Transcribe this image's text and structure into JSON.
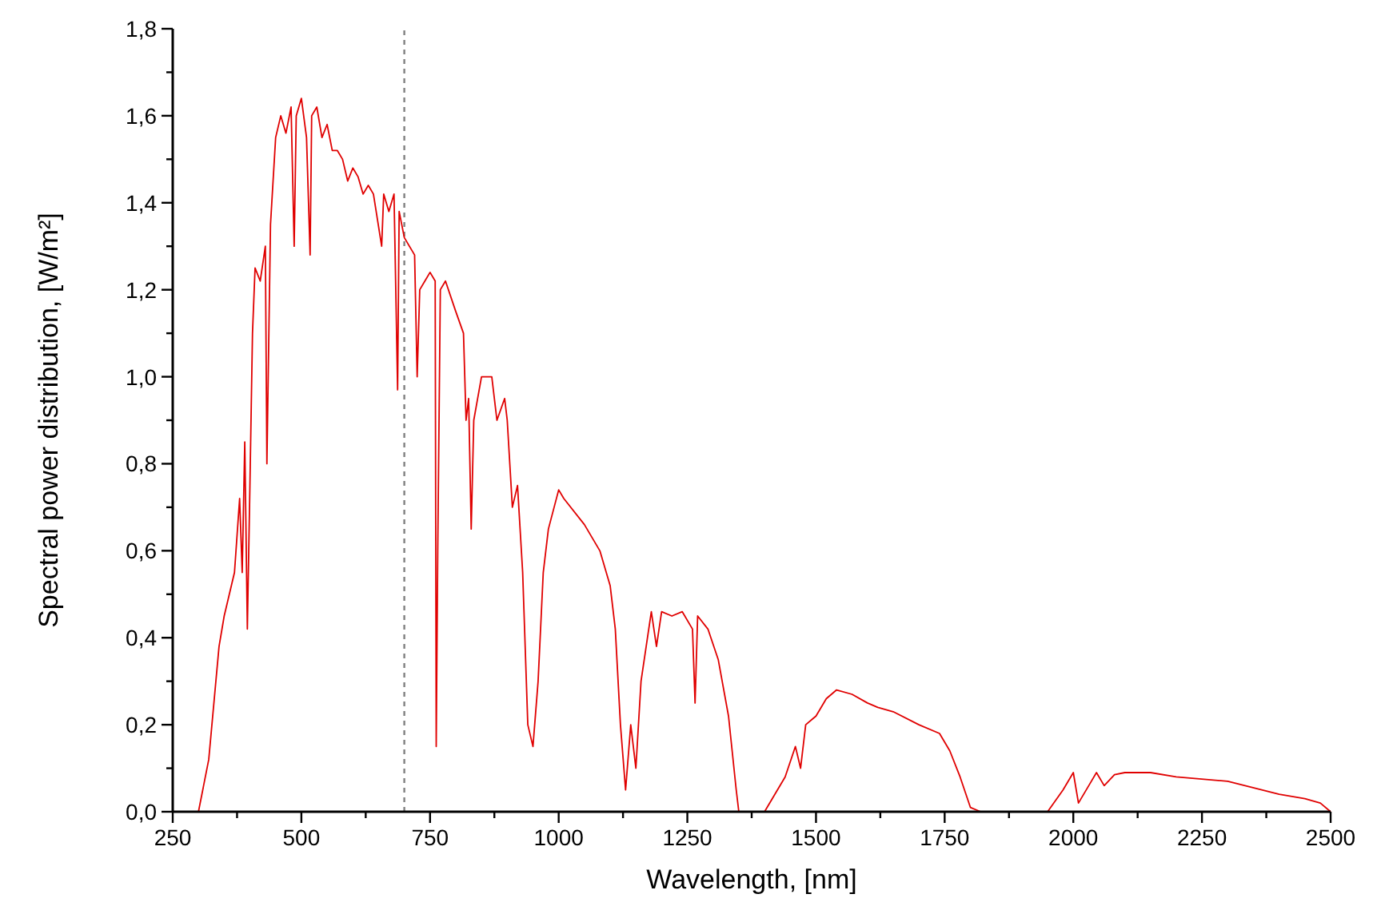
{
  "chart_data": {
    "type": "line",
    "xlabel": "Wavelength, [nm]",
    "ylabel": "Spectral power distribution, [W/m²]",
    "xlim": [
      250,
      2500
    ],
    "ylim": [
      0,
      1.8
    ],
    "xticks": [
      250,
      {
        "value": 375,
        "label": null
      },
      500,
      {
        "value": 625,
        "label": null
      },
      750,
      {
        "value": 875,
        "label": null
      },
      1000,
      {
        "value": 1125,
        "label": null
      },
      1250,
      {
        "value": 1375,
        "label": null
      },
      1500,
      {
        "value": 1625,
        "label": null
      },
      1750,
      {
        "value": 1875,
        "label": null
      },
      2000,
      {
        "value": 2125,
        "label": null
      },
      2250,
      {
        "value": 2375,
        "label": null
      },
      2500
    ],
    "yticks": [
      {
        "value": 0,
        "label": "0,0"
      },
      {
        "value": 0.1,
        "label": null
      },
      {
        "value": 0.2,
        "label": "0,2"
      },
      {
        "value": 0.3,
        "label": null
      },
      {
        "value": 0.4,
        "label": "0,4"
      },
      {
        "value": 0.5,
        "label": null
      },
      {
        "value": 0.6,
        "label": "0,6"
      },
      {
        "value": 0.7,
        "label": null
      },
      {
        "value": 0.8,
        "label": "0,8"
      },
      {
        "value": 0.9,
        "label": null
      },
      {
        "value": 1.0,
        "label": "1,0"
      },
      {
        "value": 1.1,
        "label": null
      },
      {
        "value": 1.2,
        "label": "1,2"
      },
      {
        "value": 1.3,
        "label": null
      },
      {
        "value": 1.4,
        "label": "1,4"
      },
      {
        "value": 1.5,
        "label": null
      },
      {
        "value": 1.6,
        "label": "1,6"
      },
      {
        "value": 1.7,
        "label": null
      },
      {
        "value": 1.8,
        "label": "1,8"
      }
    ],
    "grid": false,
    "line_style": "solid",
    "ref_lines": [
      {
        "axis": "x",
        "value": 700,
        "label": null,
        "color": "#808080",
        "line_style": "dotted"
      }
    ],
    "series": [
      {
        "color": "#e00000",
        "x": [
          300,
          320,
          340,
          350,
          360,
          370,
          380,
          385,
          390,
          395,
          400,
          405,
          410,
          420,
          430,
          433,
          440,
          450,
          460,
          470,
          480,
          486,
          490,
          500,
          510,
          517,
          520,
          530,
          540,
          550,
          560,
          570,
          580,
          590,
          600,
          610,
          620,
          630,
          640,
          656,
          660,
          670,
          680,
          687,
          690,
          700,
          720,
          725,
          730,
          740,
          750,
          760,
          762,
          765,
          770,
          780,
          800,
          815,
          820,
          825,
          830,
          835,
          850,
          870,
          880,
          895,
          900,
          910,
          920,
          930,
          940,
          950,
          960,
          970,
          980,
          1000,
          1010,
          1050,
          1080,
          1100,
          1110,
          1120,
          1130,
          1140,
          1150,
          1160,
          1170,
          1180,
          1190,
          1200,
          1220,
          1240,
          1260,
          1265,
          1270,
          1290,
          1310,
          1330,
          1345,
          1350,
          1400,
          1420,
          1440,
          1460,
          1470,
          1480,
          1500,
          1520,
          1540,
          1570,
          1600,
          1620,
          1650,
          1700,
          1740,
          1760,
          1780,
          1800,
          1820,
          1950,
          1980,
          2000,
          2010,
          2030,
          2045,
          2060,
          2080,
          2100,
          2150,
          2200,
          2300,
          2400,
          2450,
          2480,
          2500
        ],
        "values": [
          0,
          0.12,
          0.38,
          0.45,
          0.5,
          0.55,
          0.72,
          0.55,
          0.85,
          0.42,
          0.75,
          1.1,
          1.25,
          1.22,
          1.3,
          0.8,
          1.35,
          1.55,
          1.6,
          1.56,
          1.62,
          1.3,
          1.6,
          1.64,
          1.55,
          1.28,
          1.6,
          1.62,
          1.55,
          1.58,
          1.52,
          1.52,
          1.5,
          1.45,
          1.48,
          1.46,
          1.42,
          1.44,
          1.42,
          1.3,
          1.42,
          1.38,
          1.42,
          0.97,
          1.38,
          1.32,
          1.28,
          1.0,
          1.2,
          1.22,
          1.24,
          1.22,
          0.15,
          0.6,
          1.2,
          1.22,
          1.15,
          1.1,
          0.9,
          0.95,
          0.65,
          0.9,
          1.0,
          1.0,
          0.9,
          0.95,
          0.9,
          0.7,
          0.75,
          0.55,
          0.2,
          0.15,
          0.3,
          0.55,
          0.65,
          0.74,
          0.72,
          0.66,
          0.6,
          0.52,
          0.42,
          0.2,
          0.05,
          0.2,
          0.1,
          0.3,
          0.38,
          0.46,
          0.38,
          0.46,
          0.45,
          0.46,
          0.42,
          0.25,
          0.45,
          0.42,
          0.35,
          0.22,
          0.05,
          0,
          0,
          0.04,
          0.08,
          0.15,
          0.1,
          0.2,
          0.22,
          0.26,
          0.28,
          0.27,
          0.25,
          0.24,
          0.23,
          0.2,
          0.18,
          0.14,
          0.08,
          0.01,
          0,
          0,
          0.05,
          0.09,
          0.02,
          0.06,
          0.09,
          0.06,
          0.085,
          0.09,
          0.09,
          0.08,
          0.07,
          0.04,
          0.03,
          0.02,
          0
        ]
      }
    ]
  }
}
